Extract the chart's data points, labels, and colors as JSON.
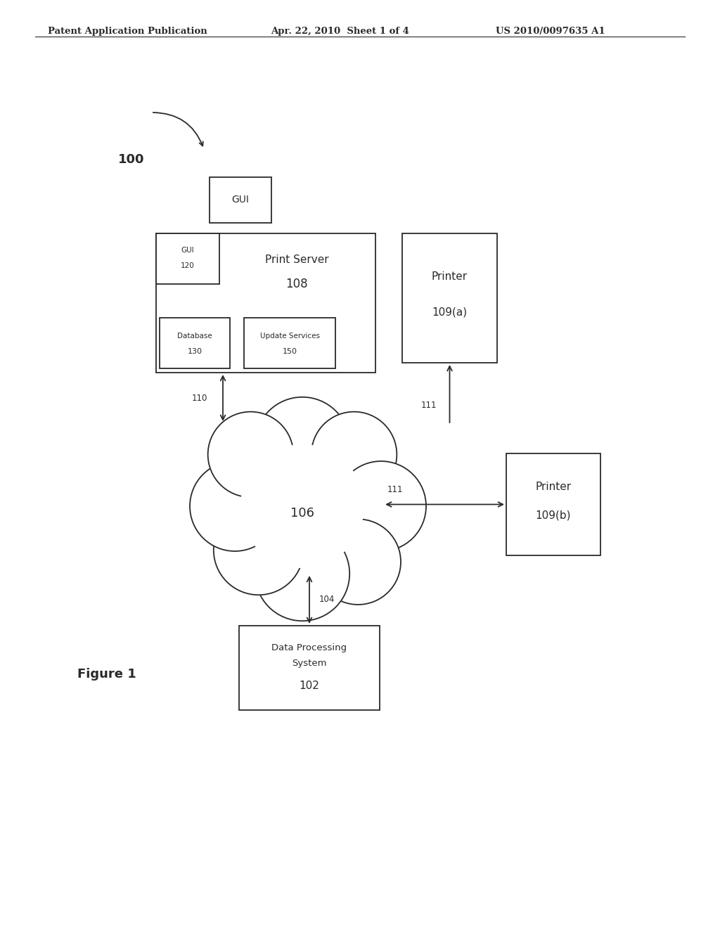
{
  "title_left": "Patent Application Publication",
  "title_mid": "Apr. 22, 2010  Sheet 1 of 4",
  "title_right": "US 2010/0097635 A1",
  "bg_color": "#ffffff",
  "line_color": "#2a2a2a",
  "figure_label": "Figure 1",
  "label_100": "100",
  "label_gui_box": "GUI",
  "label_print_server": "Print Server",
  "label_108": "108",
  "label_database_1": "Database",
  "label_database_2": "130",
  "label_update_1": "Update Services",
  "label_update_2": "150",
  "label_printer_a_1": "Printer",
  "label_printer_a_2": "109(a)",
  "label_printer_b_1": "Printer",
  "label_printer_b_2": "109(b)",
  "label_cloud": "106",
  "label_dps_1": "Data Processing",
  "label_dps_2": "System",
  "label_dps_3": "102",
  "label_110": "110",
  "label_111a": "111",
  "label_111b": "111",
  "label_104": "104",
  "label_gui_sub_1": "GUI",
  "label_gui_sub_2": "120"
}
